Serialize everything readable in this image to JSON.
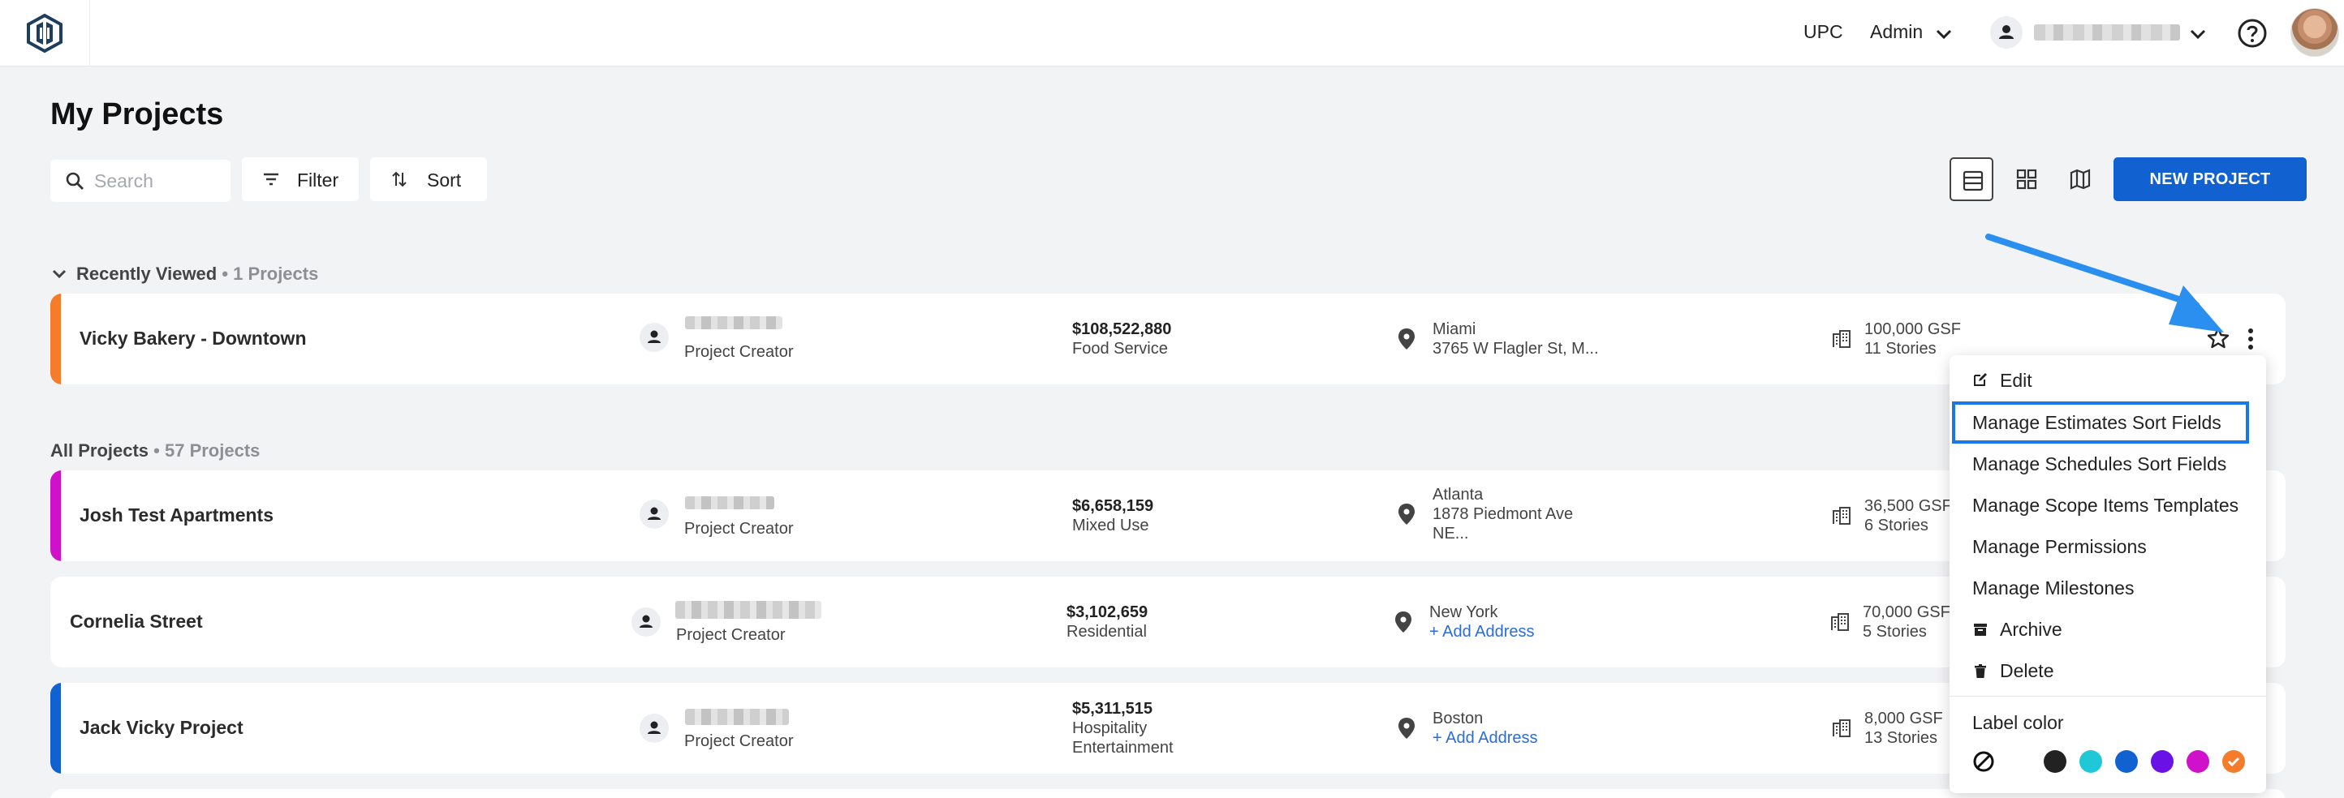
{
  "header": {
    "org": "UPC",
    "role": "Admin"
  },
  "page": {
    "title": "My Projects",
    "search_placeholder": "Search",
    "filter_label": "Filter",
    "sort_label": "Sort",
    "new_project_label": "NEW PROJECT"
  },
  "recent": {
    "title": "Recently Viewed",
    "count": "• 1 Projects",
    "project": {
      "name": "Vicky Bakery - Downtown",
      "role": "Project Creator",
      "value": "$108,522,880",
      "type": "Food Service",
      "city": "Miami",
      "address": "3765 W Flagler St, M...",
      "gsf": "100,000 GSF",
      "stories": "11 Stories",
      "accent": "#f47c2a"
    }
  },
  "all": {
    "title": "All Projects",
    "count": "• 57 Projects",
    "projects": [
      {
        "name": "Josh Test Apartments",
        "role": "Project Creator",
        "value": "$6,658,159",
        "type": "Mixed Use",
        "city": "Atlanta",
        "address": "1878 Piedmont Ave",
        "address2": "NE...",
        "gsf": "36,500 GSF",
        "stories": "6 Stories",
        "accent": "#cf12c9"
      },
      {
        "name": "Cornelia Street",
        "role": "Project Creator",
        "value": "$3,102,659",
        "type": "Residential",
        "city": "New York",
        "address": "+ Add Address",
        "gsf": "70,000 GSF",
        "stories": "5 Stories",
        "accent": ""
      },
      {
        "name": "Jack Vicky Project",
        "role": "Project Creator",
        "value": "$5,311,515",
        "type": "Hospitality",
        "type2": "Entertainment",
        "city": "Boston",
        "address": "+ Add Address",
        "gsf": "8,000 GSF",
        "stories": "13 Stories",
        "accent": "#1261d1"
      }
    ]
  },
  "menu": {
    "items": [
      "Edit",
      "Manage Estimates Sort Fields",
      "Manage Schedules Sort Fields",
      "Manage Scope Items Templates",
      "Manage Permissions",
      "Manage Milestones",
      "Archive",
      "Delete"
    ],
    "label_color_title": "Label color",
    "colors": [
      "#ffffff",
      "#222222",
      "#1ec8d6",
      "#1261d1",
      "#6a11e6",
      "#cf12c9",
      "#f47c2a"
    ]
  }
}
